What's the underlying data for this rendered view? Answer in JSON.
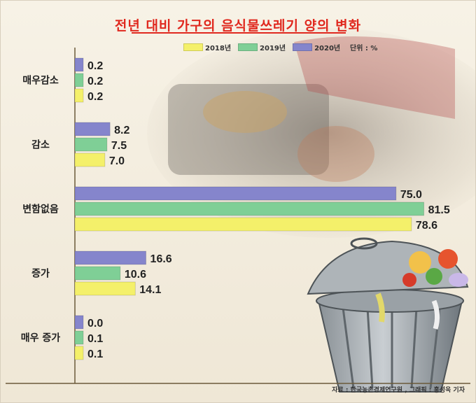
{
  "title": "전년 대비 가구의 음식물쓰레기 양의 변화",
  "unit": "단위 : %",
  "source": "자료 : 한국농촌경제연구원 , 그래픽 : 홍성욱 기자",
  "colors": {
    "s2018": "#f4f06a",
    "s2019": "#7fcf96",
    "s2020": "#8585cc"
  },
  "legend": [
    {
      "label": "2018년",
      "color": "#f4f06a"
    },
    {
      "label": "2019년",
      "color": "#7fcf96"
    },
    {
      "label": "2020년",
      "color": "#8585cc"
    }
  ],
  "chart_data": {
    "type": "bar",
    "orientation": "horizontal",
    "title": "전년 대비 가구의 음식물쓰레기 양의 변화",
    "categories": [
      "매우감소",
      "감소",
      "변함없음",
      "증가",
      "매우 증가"
    ],
    "series": [
      {
        "name": "2020년",
        "values": [
          0.2,
          8.2,
          75.0,
          16.6,
          0.0
        ]
      },
      {
        "name": "2019년",
        "values": [
          0.2,
          7.5,
          81.5,
          10.6,
          0.1
        ]
      },
      {
        "name": "2018년",
        "values": [
          0.2,
          7.0,
          78.6,
          14.1,
          0.1
        ]
      }
    ],
    "value_labels": [
      [
        "0.2",
        "8.2",
        "75.0",
        "16.6",
        "0.0"
      ],
      [
        "0.2",
        "7.5",
        "81.5",
        "10.6",
        "0.1"
      ],
      [
        "0.2",
        "7.0",
        "78.6",
        "14.1",
        "0.1"
      ]
    ],
    "xlim": [
      0,
      85
    ],
    "unit": "단위 : %",
    "grid": false,
    "legend_position": "top"
  }
}
